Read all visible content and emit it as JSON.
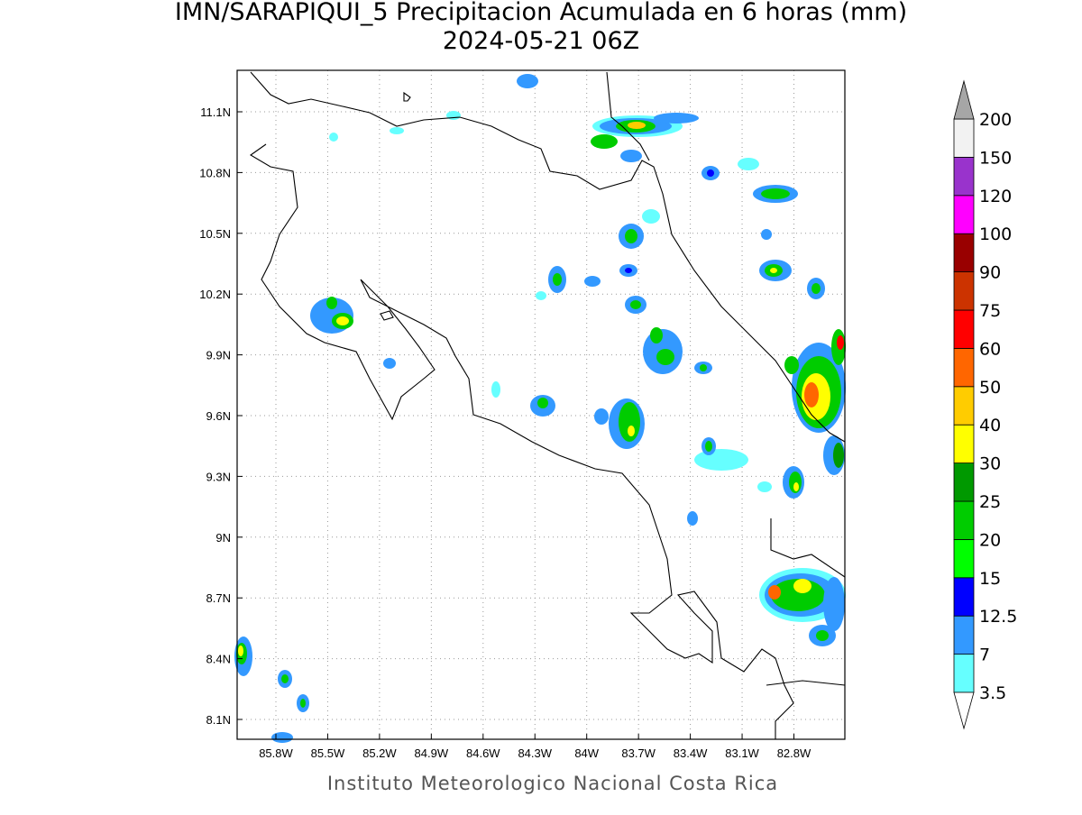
{
  "title": "IMN/SARAPIQUI_5 Precipitacion Acumulada en 6 horas (mm)",
  "subtitle": "2024-05-21 06Z",
  "map": {
    "lon_labels": [
      "85.8W",
      "85.5W",
      "85.2W",
      "84.9W",
      "84.6W",
      "84.3W",
      "84W",
      "83.7W",
      "83.4W",
      "83.1W",
      "82.8W"
    ],
    "lat_labels": [
      "11.1N",
      "10.8N",
      "10.5N",
      "10.2N",
      "9.9N",
      "9.6N",
      "9.3N",
      "9N",
      "8.7N",
      "8.4N",
      "8.1N"
    ]
  },
  "colorbar": {
    "levels": [
      3.5,
      7,
      12.5,
      15,
      20,
      25,
      30,
      40,
      50,
      60,
      75,
      90,
      100,
      120,
      150,
      200
    ],
    "colors": [
      "#66ffff",
      "#3399ff",
      "#0000ff",
      "#00ff00",
      "#00cc00",
      "#009900",
      "#ffff00",
      "#ffcc00",
      "#ff6600",
      "#ff0000",
      "#cc3300",
      "#990000",
      "#ff00ff",
      "#9933cc",
      "#f2f2f2"
    ],
    "below_color": "#ffffff",
    "above_color": "#a6a6a6"
  },
  "footer": "Instituto Meteorologico Nacional Costa Rica"
}
